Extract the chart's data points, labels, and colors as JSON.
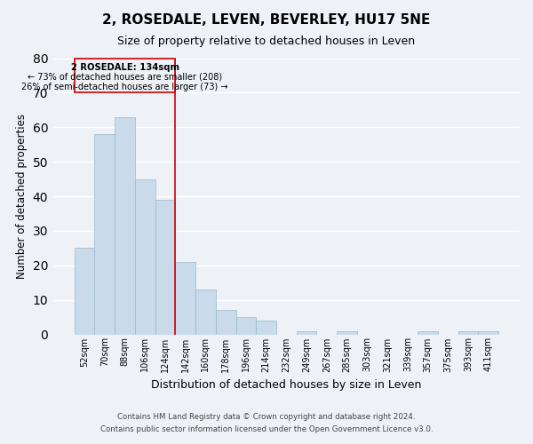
{
  "title": "2, ROSEDALE, LEVEN, BEVERLEY, HU17 5NE",
  "subtitle": "Size of property relative to detached houses in Leven",
  "xlabel": "Distribution of detached houses by size in Leven",
  "ylabel": "Number of detached properties",
  "bar_color": "#c9daea",
  "bar_edge_color": "#9ab8cc",
  "bin_labels": [
    "52sqm",
    "70sqm",
    "88sqm",
    "106sqm",
    "124sqm",
    "142sqm",
    "160sqm",
    "178sqm",
    "196sqm",
    "214sqm",
    "232sqm",
    "249sqm",
    "267sqm",
    "285sqm",
    "303sqm",
    "321sqm",
    "339sqm",
    "357sqm",
    "375sqm",
    "393sqm",
    "411sqm"
  ],
  "bar_heights": [
    25,
    58,
    63,
    45,
    39,
    21,
    13,
    7,
    5,
    4,
    0,
    1,
    0,
    1,
    0,
    0,
    0,
    1,
    0,
    1,
    1
  ],
  "vline_color": "#cc0000",
  "vline_x": 4.5,
  "annotation_text_line1": "2 ROSEDALE: 134sqm",
  "annotation_text_line2": "← 73% of detached houses are smaller (208)",
  "annotation_text_line3": "26% of semi-detached houses are larger (73) →",
  "ylim": [
    0,
    80
  ],
  "yticks": [
    0,
    10,
    20,
    30,
    40,
    50,
    60,
    70,
    80
  ],
  "footer_line1": "Contains HM Land Registry data © Crown copyright and database right 2024.",
  "footer_line2": "Contains public sector information licensed under the Open Government Licence v3.0.",
  "background_color": "#eef2f7",
  "grid_color": "#ffffff"
}
